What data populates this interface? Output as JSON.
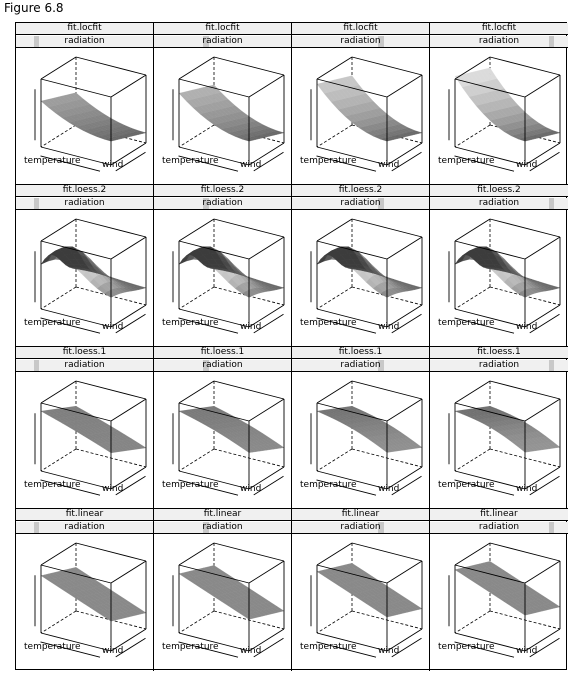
{
  "figure_title": "Figure 6.8",
  "colors": {
    "frame": "#000000",
    "strip_bg": "#f0f0f0",
    "strip_level": "#c8c8c8"
  },
  "chart_data": {
    "type": "surface-3d-wireframe-grid",
    "layout": {
      "rows": 4,
      "columns": 4
    },
    "row_models": [
      "fit.locfit",
      "fit.loess.2",
      "fit.loess.1",
      "fit.linear"
    ],
    "condition_variable": "radiation",
    "radiation_level_fraction": [
      0.15,
      0.38,
      0.65,
      0.88
    ],
    "axis_labels": {
      "x": "temperature",
      "y": "wind"
    },
    "panels": [
      {
        "model": "fit.locfit",
        "cond": "radiation"
      },
      {
        "model": "fit.locfit",
        "cond": "radiation"
      },
      {
        "model": "fit.locfit",
        "cond": "radiation"
      },
      {
        "model": "fit.locfit",
        "cond": "radiation"
      },
      {
        "model": "fit.loess.2",
        "cond": "radiation"
      },
      {
        "model": "fit.loess.2",
        "cond": "radiation"
      },
      {
        "model": "fit.loess.2",
        "cond": "radiation"
      },
      {
        "model": "fit.loess.2",
        "cond": "radiation"
      },
      {
        "model": "fit.loess.1",
        "cond": "radiation"
      },
      {
        "model": "fit.loess.1",
        "cond": "radiation"
      },
      {
        "model": "fit.loess.1",
        "cond": "radiation"
      },
      {
        "model": "fit.loess.1",
        "cond": "radiation"
      },
      {
        "model": "fit.linear",
        "cond": "radiation"
      },
      {
        "model": "fit.linear",
        "cond": "radiation"
      },
      {
        "model": "fit.linear",
        "cond": "radiation"
      },
      {
        "model": "fit.linear",
        "cond": "radiation"
      }
    ]
  }
}
